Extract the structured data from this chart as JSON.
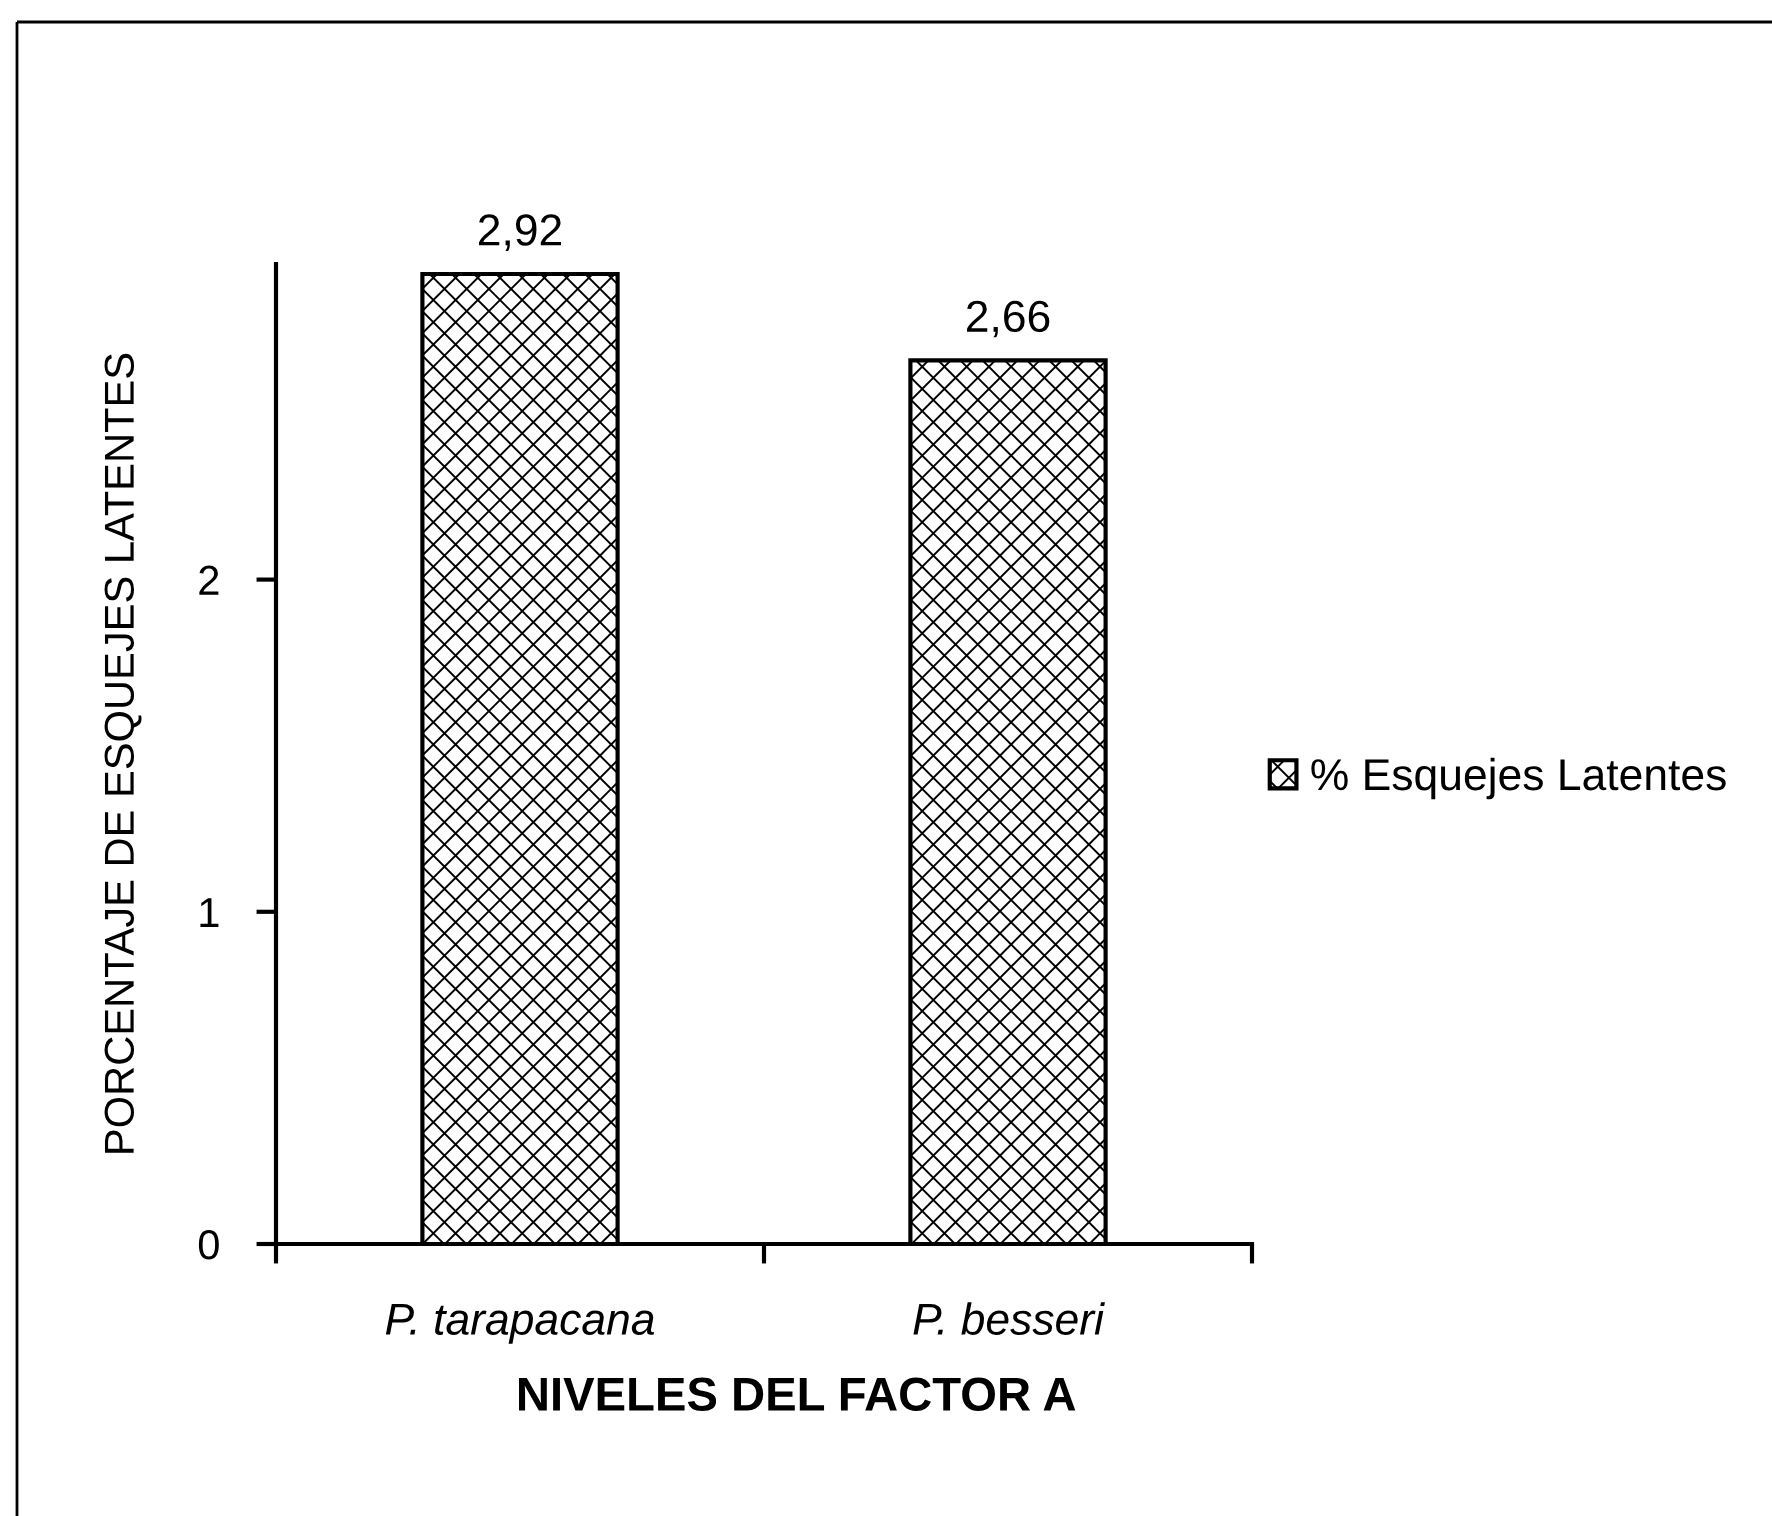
{
  "chart_data": {
    "type": "bar",
    "categories": [
      "P. tarapacana",
      "P. besseri"
    ],
    "series": [
      {
        "name": "% Esquejes Latentes",
        "color": "#000000",
        "values": [
          2.92,
          2.66
        ],
        "value_labels": [
          "2,92",
          "2,66"
        ]
      }
    ],
    "xlabel": "NIVELES DEL FACTOR A",
    "ylabel": "PORCENTAJE DE ESQUEJES LATENTES",
    "ylim": [
      0,
      2.95
    ],
    "yticks": [
      0,
      1,
      2
    ],
    "legend": "right"
  }
}
